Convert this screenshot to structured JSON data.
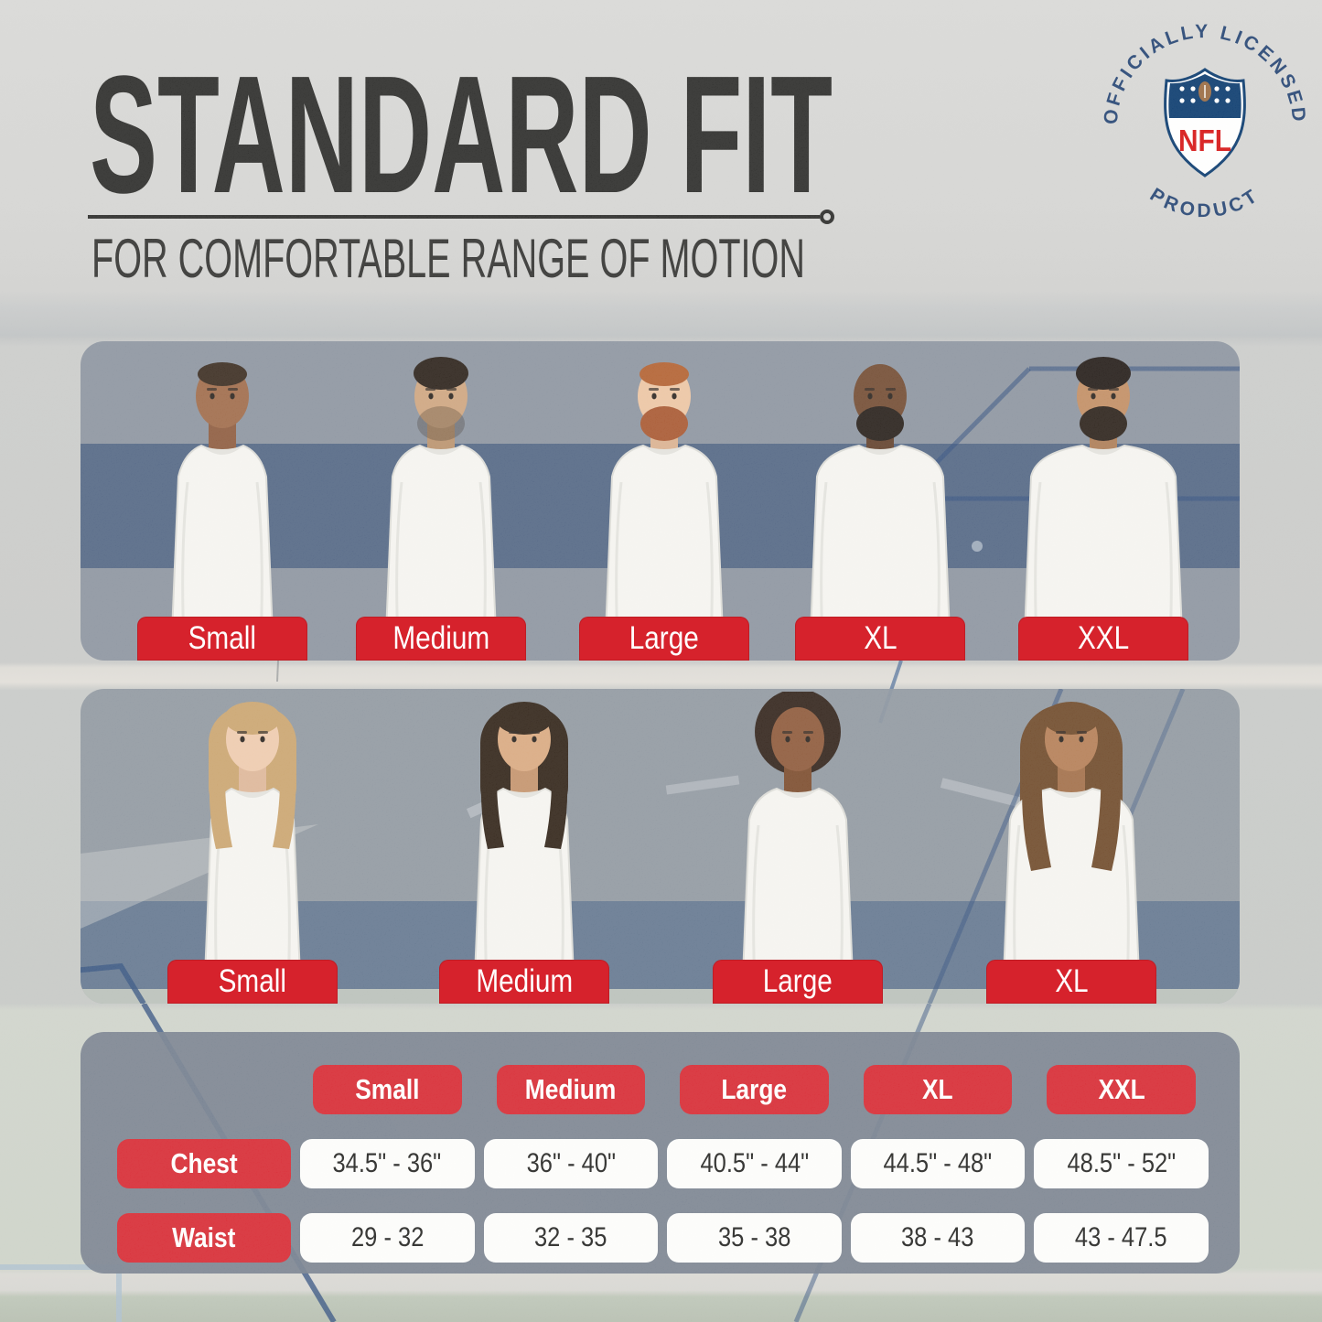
{
  "header": {
    "title": "STANDARD FIT",
    "subtitle": "FOR COMFORTABLE RANGE OF MOTION"
  },
  "badge": {
    "arc_top": "OFFICIALLY LICENSED",
    "arc_bottom": "PRODUCT",
    "logo_text": "NFL",
    "navy": "#1d3e6e",
    "shield_blue": "#013369",
    "shield_red": "#d50a0a"
  },
  "colors": {
    "accent_red": "#d6222c",
    "panel_slate": "#838c99",
    "band_blue": "#2c4a78",
    "decor_line_blue": "#2c4b7b",
    "text_black": "#232321"
  },
  "men_row": {
    "labels": [
      "Small",
      "Medium",
      "Large",
      "XL",
      "XXL"
    ]
  },
  "women_row": {
    "labels": [
      "Small",
      "Medium",
      "Large",
      "XL"
    ]
  },
  "models": {
    "men": [
      {
        "size": "Small",
        "skin": "#9c6644",
        "shade": "#8a5638",
        "hair": "#342519",
        "style": "buzz",
        "beard": null,
        "build": 0.78
      },
      {
        "size": "Medium",
        "skin": "#cda27b",
        "shade": "#b88f69",
        "hair": "#241a12",
        "style": "short",
        "beard": "rgba(40,28,18,0.28)",
        "build": 0.85
      },
      {
        "size": "Large",
        "skin": "#ecc3a0",
        "shade": "#d9af8c",
        "hair": "#b05c2a",
        "style": "buzz",
        "beard": "#a5522a",
        "build": 0.92
      },
      {
        "size": "XL",
        "skin": "#6e462c",
        "shade": "#5d3a24",
        "hair": null,
        "style": "bald",
        "beard": "#201812",
        "build": 1.12
      },
      {
        "size": "XXL",
        "skin": "#c08a5e",
        "shade": "#aa7850",
        "hair": "#1c1410",
        "style": "short",
        "beard": "#241a12",
        "build": 1.28
      }
    ],
    "women": [
      {
        "size": "Small",
        "skin": "#eec9ab",
        "shade": "#ddb495",
        "hair": "#c9a26b",
        "style": "long",
        "beard": null,
        "build": 0.72
      },
      {
        "size": "Medium",
        "skin": "#d8a67c",
        "shade": "#c29067",
        "hair": "#2a1c10",
        "style": "long",
        "beard": null,
        "build": 0.76
      },
      {
        "size": "Large",
        "skin": "#8a5434",
        "shade": "#774626",
        "hair": "#2b1c13",
        "style": "afro",
        "beard": null,
        "build": 0.85
      },
      {
        "size": "XL",
        "skin": "#b27a50",
        "shade": "#9f6a42",
        "hair": "#6b4423",
        "style": "curly",
        "beard": null,
        "build": 1.08
      }
    ]
  },
  "size_table": {
    "columns": [
      "Small",
      "Medium",
      "Large",
      "XL",
      "XXL"
    ],
    "rows": [
      {
        "label": "Chest",
        "values": [
          "34.5\" - 36\"",
          "36\" - 40\"",
          "40.5\" - 44\"",
          "44.5\" - 48\"",
          "48.5\" - 52\""
        ]
      },
      {
        "label": "Waist",
        "values": [
          "29 - 32",
          "32 - 35",
          "35 - 38",
          "38 - 43",
          "43 - 47.5"
        ]
      }
    ]
  },
  "chart_data": {
    "type": "table",
    "title": "Standard Fit size chart",
    "columns": [
      "",
      "Small",
      "Medium",
      "Large",
      "XL",
      "XXL"
    ],
    "rows": [
      [
        "Chest",
        "34.5\" - 36\"",
        "36\" - 40\"",
        "40.5\" - 44\"",
        "44.5\" - 48\"",
        "48.5\" - 52\""
      ],
      [
        "Waist",
        "29 - 32",
        "32 - 35",
        "35 - 38",
        "38 - 43",
        "43 - 47.5"
      ]
    ]
  }
}
